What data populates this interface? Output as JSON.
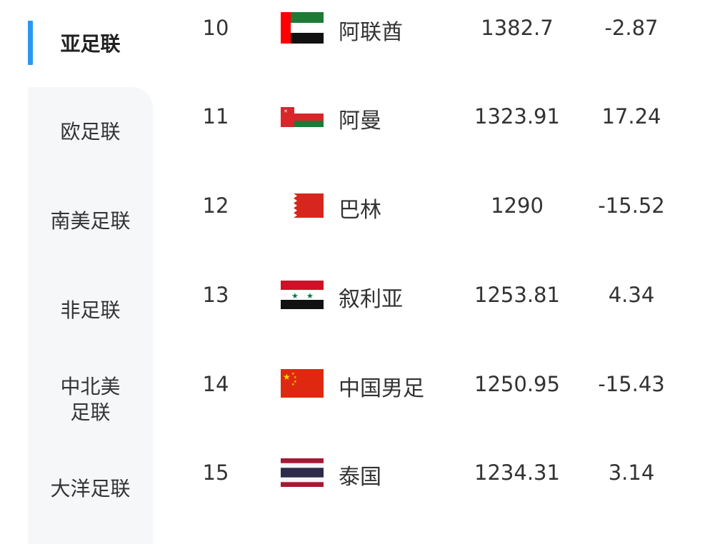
{
  "sidebar": {
    "items": [
      {
        "label": "亚足联",
        "active": true
      },
      {
        "label": "欧足联"
      },
      {
        "label": "南美足联"
      },
      {
        "label": "非足联"
      },
      {
        "label": "中北美\n足联"
      },
      {
        "label": "大洋足联"
      }
    ],
    "accent": "#2b97f0"
  },
  "rankings": [
    {
      "rank": "10",
      "flag": "uae-flag",
      "name": "阿联酋",
      "points": "1382.7",
      "change": "-2.87"
    },
    {
      "rank": "11",
      "flag": "oman-flag",
      "name": "阿曼",
      "points": "1323.91",
      "change": "17.24"
    },
    {
      "rank": "12",
      "flag": "bahrain-flag",
      "name": "巴林",
      "points": "1290",
      "change": "-15.52"
    },
    {
      "rank": "13",
      "flag": "syria-flag",
      "name": "叙利亚",
      "points": "1253.81",
      "change": "4.34"
    },
    {
      "rank": "14",
      "flag": "china-flag",
      "name": "中国男足",
      "points": "1250.95",
      "change": "-15.43"
    },
    {
      "rank": "15",
      "flag": "thailand-flag",
      "name": "泰国",
      "points": "1234.31",
      "change": "3.14"
    }
  ]
}
